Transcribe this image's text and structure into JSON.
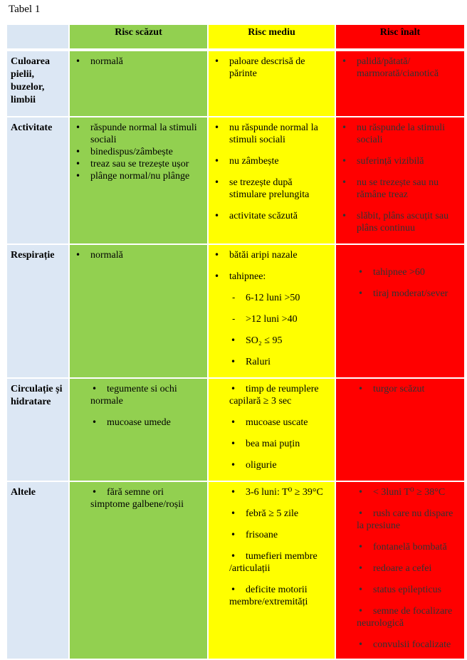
{
  "caption": "Tabel 1",
  "header": {
    "low": "Risc scăzut",
    "mid": "Risc mediu",
    "high": "Risc înalt"
  },
  "rows": [
    {
      "label": "Culoarea pielii, buzelor, limbii",
      "low": [
        "normală"
      ],
      "mid": [
        "paloare descrisă de părinte"
      ],
      "high": [
        "palidă/pătată/ marmorată/cianotică"
      ]
    },
    {
      "label": "Activitate",
      "low": [
        "răspunde normal la stimuli sociali",
        "binedispus/zâmbește",
        "treaz sau se trezește ușor",
        "plânge normal/nu plânge"
      ],
      "mid": [
        "nu răspunde normal la stimuli sociali",
        "nu zâmbește",
        "se trezește după stimulare prelungita",
        "activitate scăzută"
      ],
      "high": [
        "nu răspunde la stimuli sociali",
        "suferință vizibilă",
        "nu se trezește sau nu rămâne treaz",
        "slăbit, plâns ascuțit sau plâns continuu"
      ]
    },
    {
      "label": "Respirație",
      "low": [
        "normală"
      ],
      "mid": [
        "bătăi aripi nazale",
        "tahipnee:",
        "6-12 luni >50",
        ">12 luni >40",
        "SO₂ ≤ 95",
        "Raluri"
      ],
      "high": [
        "tahipnee >60",
        "tiraj moderat/sever"
      ]
    },
    {
      "label": "Circulație și hidratare",
      "low": [
        "tegumente si ochi normale",
        "mucoase umede"
      ],
      "mid": [
        "timp de reumplere capilară ≥ 3 sec",
        "mucoase uscate",
        "bea mai puțin",
        "oligurie"
      ],
      "high": [
        "turgor scăzut"
      ]
    },
    {
      "label": "Altele",
      "low": [
        "fără semne ori simptome galbene/roșii"
      ],
      "mid": [
        "3-6 luni: T⁰ ≥ 39°C",
        "febră ≥ 5 zile",
        "frisoane",
        "tumefieri membre /articulații",
        "deficite motorii membre/extremități"
      ],
      "high": [
        "< 3luni T⁰ ≥ 38°C",
        "rush care nu dispare la presiune",
        "fontanelă bombată",
        "redoare a cefei",
        "status epilepticus",
        "semne de focalizare neurologică",
        "convulsii focalizate"
      ]
    }
  ],
  "colors": {
    "low": "#92d050",
    "mid": "#ffff00",
    "high": "#ff0000",
    "label": "#dce7f4"
  }
}
